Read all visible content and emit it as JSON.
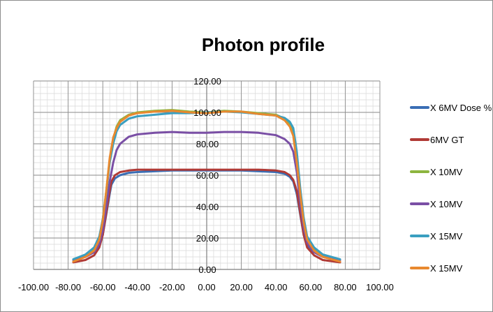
{
  "chart_data": {
    "type": "line",
    "title": "Photon profile",
    "xlabel": "",
    "ylabel": "",
    "xlim": [
      -100,
      100
    ],
    "ylim": [
      0,
      120
    ],
    "x_ticks": [
      "-100.00",
      "-80.00",
      "-60.00",
      "-40.00",
      "-20.00",
      "0.00",
      "20.00",
      "40.00",
      "60.00",
      "80.00",
      "100.00"
    ],
    "y_ticks": [
      "0.00",
      "20.00",
      "40.00",
      "60.00",
      "80.00",
      "100.00",
      "120.00"
    ],
    "grid": true,
    "legend_position": "right",
    "series": [
      {
        "name": "X 6MV Dose %",
        "color": "#3a6eb5",
        "points": [
          [
            -77,
            6
          ],
          [
            -70,
            8
          ],
          [
            -65,
            11
          ],
          [
            -62,
            15
          ],
          [
            -60,
            22
          ],
          [
            -58,
            35
          ],
          [
            -56,
            48
          ],
          [
            -55,
            54
          ],
          [
            -53,
            58
          ],
          [
            -50,
            60
          ],
          [
            -45,
            61.5
          ],
          [
            -40,
            62
          ],
          [
            -30,
            62.5
          ],
          [
            -20,
            63
          ],
          [
            -10,
            63
          ],
          [
            0,
            63
          ],
          [
            10,
            63
          ],
          [
            20,
            63
          ],
          [
            30,
            62.5
          ],
          [
            40,
            62
          ],
          [
            45,
            61
          ],
          [
            48,
            59
          ],
          [
            50,
            56
          ],
          [
            52,
            48
          ],
          [
            54,
            35
          ],
          [
            56,
            22
          ],
          [
            58,
            15
          ],
          [
            62,
            11
          ],
          [
            67,
            8
          ],
          [
            77,
            6
          ]
        ]
      },
      {
        "name": "6MV GT",
        "color": "#b03a36",
        "points": [
          [
            -77,
            4.5
          ],
          [
            -70,
            6
          ],
          [
            -65,
            9
          ],
          [
            -62,
            14
          ],
          [
            -60,
            22
          ],
          [
            -58,
            36
          ],
          [
            -56,
            50
          ],
          [
            -55,
            56
          ],
          [
            -53,
            60
          ],
          [
            -50,
            62
          ],
          [
            -45,
            63
          ],
          [
            -40,
            63.5
          ],
          [
            -30,
            63.5
          ],
          [
            -20,
            63.5
          ],
          [
            -10,
            63.5
          ],
          [
            0,
            63.5
          ],
          [
            10,
            63.5
          ],
          [
            20,
            63.5
          ],
          [
            30,
            63.5
          ],
          [
            40,
            63
          ],
          [
            45,
            62
          ],
          [
            48,
            60
          ],
          [
            50,
            57
          ],
          [
            52,
            50
          ],
          [
            54,
            36
          ],
          [
            56,
            22
          ],
          [
            58,
            14
          ],
          [
            62,
            9
          ],
          [
            67,
            6
          ],
          [
            77,
            4.5
          ]
        ]
      },
      {
        "name": "X 10MV",
        "color": "#8db53f",
        "points": [
          [
            -77,
            6
          ],
          [
            -70,
            9
          ],
          [
            -65,
            13
          ],
          [
            -62,
            20
          ],
          [
            -60,
            32
          ],
          [
            -58,
            50
          ],
          [
            -56,
            70
          ],
          [
            -54,
            83
          ],
          [
            -52,
            91
          ],
          [
            -50,
            95
          ],
          [
            -45,
            98.5
          ],
          [
            -40,
            100
          ],
          [
            -30,
            101
          ],
          [
            -20,
            101.5
          ],
          [
            -10,
            100.5
          ],
          [
            0,
            100
          ],
          [
            10,
            101
          ],
          [
            20,
            100.5
          ],
          [
            30,
            99.5
          ],
          [
            40,
            98.5
          ],
          [
            45,
            96
          ],
          [
            48,
            93
          ],
          [
            50,
            88
          ],
          [
            52,
            72
          ],
          [
            54,
            50
          ],
          [
            56,
            32
          ],
          [
            58,
            20
          ],
          [
            62,
            13
          ],
          [
            67,
            9
          ],
          [
            77,
            6
          ]
        ]
      },
      {
        "name": "X 10MV",
        "color": "#7a4fa5",
        "points": [
          [
            -77,
            6
          ],
          [
            -70,
            8
          ],
          [
            -65,
            11
          ],
          [
            -62,
            16
          ],
          [
            -60,
            25
          ],
          [
            -58,
            40
          ],
          [
            -56,
            56
          ],
          [
            -54,
            68
          ],
          [
            -52,
            76
          ],
          [
            -50,
            80
          ],
          [
            -45,
            84.5
          ],
          [
            -40,
            86
          ],
          [
            -30,
            87
          ],
          [
            -20,
            87.5
          ],
          [
            -10,
            87
          ],
          [
            0,
            87
          ],
          [
            10,
            87.5
          ],
          [
            20,
            87.5
          ],
          [
            30,
            87
          ],
          [
            40,
            85.5
          ],
          [
            45,
            83
          ],
          [
            48,
            80
          ],
          [
            50,
            75
          ],
          [
            52,
            62
          ],
          [
            54,
            42
          ],
          [
            56,
            26
          ],
          [
            58,
            17
          ],
          [
            62,
            11
          ],
          [
            67,
            8
          ],
          [
            77,
            6
          ]
        ]
      },
      {
        "name": "X 15MV",
        "color": "#3a9fc0",
        "points": [
          [
            -77,
            6.5
          ],
          [
            -70,
            9.5
          ],
          [
            -65,
            14
          ],
          [
            -62,
            21
          ],
          [
            -60,
            32
          ],
          [
            -58,
            49
          ],
          [
            -56,
            68
          ],
          [
            -54,
            80
          ],
          [
            -52,
            88
          ],
          [
            -50,
            92
          ],
          [
            -45,
            96
          ],
          [
            -40,
            97.5
          ],
          [
            -30,
            98.5
          ],
          [
            -20,
            99.5
          ],
          [
            -10,
            99.5
          ],
          [
            0,
            100
          ],
          [
            10,
            100.5
          ],
          [
            20,
            100
          ],
          [
            30,
            99
          ],
          [
            40,
            98
          ],
          [
            45,
            96.5
          ],
          [
            48,
            94
          ],
          [
            50,
            90
          ],
          [
            52,
            75
          ],
          [
            54,
            52
          ],
          [
            56,
            33
          ],
          [
            58,
            21
          ],
          [
            62,
            14
          ],
          [
            67,
            9.5
          ],
          [
            77,
            6.5
          ]
        ]
      },
      {
        "name": "X 15MV",
        "color": "#e8892f",
        "points": [
          [
            -77,
            5
          ],
          [
            -70,
            8
          ],
          [
            -65,
            12
          ],
          [
            -62,
            19
          ],
          [
            -60,
            31
          ],
          [
            -58,
            50
          ],
          [
            -56,
            71
          ],
          [
            -54,
            84
          ],
          [
            -52,
            90
          ],
          [
            -50,
            94
          ],
          [
            -45,
            98
          ],
          [
            -40,
            99.5
          ],
          [
            -30,
            100.5
          ],
          [
            -20,
            101
          ],
          [
            -10,
            100
          ],
          [
            0,
            99.5
          ],
          [
            10,
            100.5
          ],
          [
            20,
            100.5
          ],
          [
            30,
            99
          ],
          [
            40,
            98
          ],
          [
            45,
            95
          ],
          [
            48,
            91
          ],
          [
            50,
            85
          ],
          [
            52,
            68
          ],
          [
            54,
            48
          ],
          [
            56,
            30
          ],
          [
            58,
            19
          ],
          [
            62,
            12
          ],
          [
            67,
            8
          ],
          [
            77,
            5
          ]
        ]
      }
    ]
  }
}
